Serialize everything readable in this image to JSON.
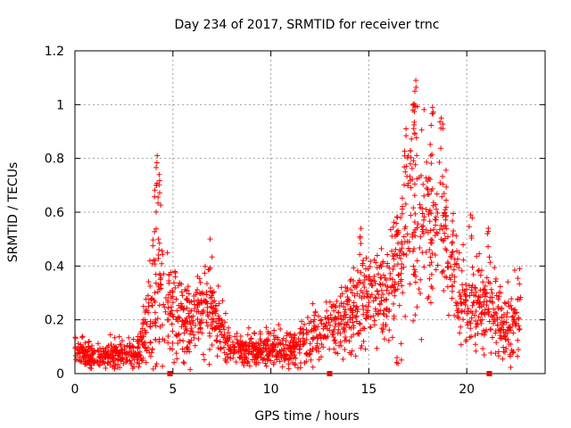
{
  "chart_data": {
    "type": "scatter",
    "title": "Day 234 of 2017, SRMTID for receiver trnc",
    "xlabel": "GPS time / hours",
    "ylabel": "SRMTID / TECUs",
    "xlim": [
      0,
      24
    ],
    "ylim": [
      0,
      1.2
    ],
    "x_ticks": [
      0,
      5,
      10,
      15,
      20
    ],
    "x_tick_labels": [
      "0",
      "5",
      "10",
      "15",
      "20"
    ],
    "y_ticks": [
      0,
      0.2,
      0.4,
      0.6,
      0.8,
      1.0,
      1.2
    ],
    "y_tick_labels": [
      "0",
      "0.2",
      "0.4",
      "0.6",
      "0.8",
      "1",
      "1.2"
    ],
    "grid": true,
    "color": "#ff0000",
    "marker": "plus",
    "x_range": [
      0,
      22.75
    ],
    "baseline_markers_x": [
      4.85,
      13.0,
      21.15
    ],
    "envelope": {
      "x": [
        0,
        0.5,
        1,
        1.5,
        2,
        2.5,
        3,
        3.3,
        3.6,
        3.9,
        4.1,
        4.3,
        4.6,
        5,
        5.5,
        6,
        6.5,
        7,
        7.5,
        8,
        9,
        10,
        11,
        11.5,
        12,
        12.5,
        13,
        13.5,
        14,
        14.5,
        15,
        15.5,
        16,
        16.5,
        17,
        17.5,
        18,
        18.5,
        19,
        19.5,
        20,
        20.5,
        21,
        21.5,
        22,
        22.75
      ],
      "center": [
        0.08,
        0.07,
        0.07,
        0.07,
        0.07,
        0.07,
        0.07,
        0.09,
        0.17,
        0.26,
        0.32,
        0.3,
        0.26,
        0.22,
        0.2,
        0.21,
        0.22,
        0.23,
        0.14,
        0.1,
        0.09,
        0.09,
        0.09,
        0.11,
        0.14,
        0.16,
        0.17,
        0.19,
        0.22,
        0.27,
        0.29,
        0.29,
        0.3,
        0.38,
        0.54,
        0.6,
        0.59,
        0.55,
        0.46,
        0.33,
        0.27,
        0.26,
        0.24,
        0.21,
        0.17,
        0.21
      ],
      "spread": [
        0.03,
        0.03,
        0.03,
        0.03,
        0.03,
        0.03,
        0.03,
        0.04,
        0.09,
        0.14,
        0.2,
        0.16,
        0.12,
        0.1,
        0.08,
        0.08,
        0.09,
        0.09,
        0.06,
        0.04,
        0.04,
        0.04,
        0.04,
        0.05,
        0.06,
        0.06,
        0.06,
        0.07,
        0.08,
        0.1,
        0.1,
        0.1,
        0.12,
        0.17,
        0.2,
        0.21,
        0.19,
        0.17,
        0.15,
        0.11,
        0.1,
        0.1,
        0.09,
        0.08,
        0.07,
        0.08
      ],
      "peaks": [
        {
          "x": 4.2,
          "y": 0.81
        },
        {
          "x": 4.3,
          "y": 0.74
        },
        {
          "x": 4.15,
          "y": 0.7
        },
        {
          "x": 6.9,
          "y": 0.5
        },
        {
          "x": 14.6,
          "y": 0.54
        },
        {
          "x": 16.9,
          "y": 0.91
        },
        {
          "x": 17.4,
          "y": 1.09
        },
        {
          "x": 17.35,
          "y": 1.05
        },
        {
          "x": 17.25,
          "y": 0.98
        },
        {
          "x": 18.25,
          "y": 0.99
        },
        {
          "x": 18.7,
          "y": 0.95
        },
        {
          "x": 20.2,
          "y": 0.59
        },
        {
          "x": 21.1,
          "y": 0.54
        },
        {
          "x": 22.7,
          "y": 0.39
        }
      ]
    }
  }
}
